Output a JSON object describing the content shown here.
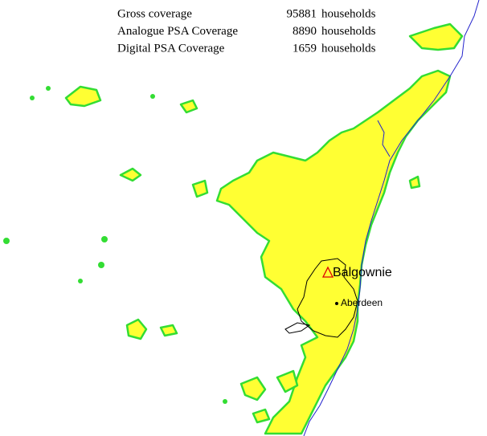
{
  "legend": {
    "rows": [
      {
        "label": "Gross coverage",
        "value": 95881,
        "unit": "households"
      },
      {
        "label": "Analogue PSA Coverage",
        "value": 8890,
        "unit": "households"
      },
      {
        "label": "Digital PSA Coverage",
        "value": 1659,
        "unit": "households"
      }
    ]
  },
  "places": [
    {
      "label": "Balgownie"
    },
    {
      "label": "Aberdeen"
    }
  ]
}
